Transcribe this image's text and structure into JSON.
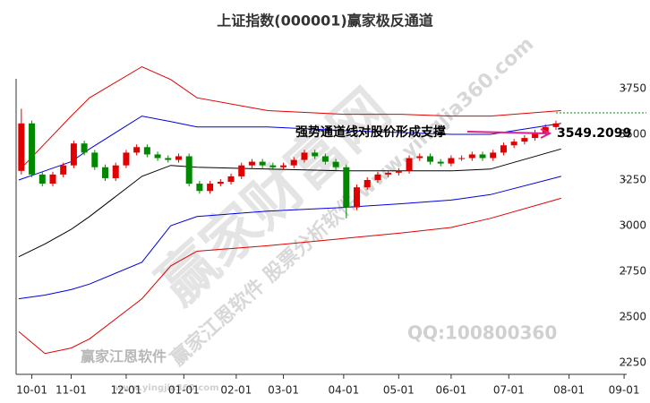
{
  "chart_data": {
    "type": "candlestick",
    "title": "上证指数(000001)赢家极反通道",
    "xlim": [
      -6,
      227
    ],
    "ylim": [
      2186,
      3804
    ],
    "xticks": [
      {
        "value": 0,
        "label": "10-01"
      },
      {
        "value": 15,
        "label": "11-01"
      },
      {
        "value": 36,
        "label": "12-01"
      },
      {
        "value": 58,
        "label": "01-01"
      },
      {
        "value": 78,
        "label": "02-01"
      },
      {
        "value": 96,
        "label": "03-01"
      },
      {
        "value": 119,
        "label": "04-01"
      },
      {
        "value": 140,
        "label": "05-01"
      },
      {
        "value": 160,
        "label": "06-01"
      },
      {
        "value": 182,
        "label": "07-01"
      },
      {
        "value": 205,
        "label": "08-01"
      },
      {
        "value": 226,
        "label": "09-01"
      }
    ],
    "yticks": [
      2250,
      2500,
      2750,
      3000,
      3250,
      3500,
      3750
    ],
    "up_color": "#e00000",
    "down_color": "#008800",
    "x": [
      -4,
      0,
      4,
      8,
      12,
      16,
      20,
      24,
      28,
      32,
      36,
      40,
      44,
      48,
      52,
      56,
      60,
      64,
      68,
      72,
      76,
      80,
      84,
      88,
      92,
      96,
      100,
      104,
      108,
      112,
      116,
      120,
      124,
      128,
      132,
      136,
      140,
      144,
      148,
      152,
      156,
      160,
      164,
      168,
      172,
      176,
      180,
      184,
      188,
      192,
      196,
      200
    ],
    "open": [
      3300,
      3560,
      3280,
      3230,
      3280,
      3330,
      3450,
      3400,
      3320,
      3260,
      3330,
      3400,
      3430,
      3390,
      3370,
      3360,
      3380,
      3230,
      3190,
      3230,
      3240,
      3270,
      3330,
      3350,
      3330,
      3320,
      3330,
      3360,
      3400,
      3380,
      3350,
      3320,
      3100,
      3210,
      3250,
      3280,
      3290,
      3300,
      3370,
      3380,
      3350,
      3340,
      3370,
      3370,
      3390,
      3370,
      3400,
      3440,
      3460,
      3480,
      3510,
      3540
    ],
    "high": [
      3640,
      3575,
      3295,
      3295,
      3345,
      3465,
      3465,
      3415,
      3335,
      3345,
      3415,
      3445,
      3445,
      3405,
      3385,
      3395,
      3395,
      3245,
      3245,
      3255,
      3285,
      3345,
      3365,
      3365,
      3345,
      3345,
      3375,
      3415,
      3415,
      3395,
      3365,
      3335,
      3225,
      3265,
      3295,
      3305,
      3315,
      3385,
      3395,
      3395,
      3365,
      3385,
      3385,
      3405,
      3405,
      3415,
      3455,
      3475,
      3495,
      3525,
      3555,
      3575
    ],
    "low": [
      3280,
      3265,
      3215,
      3215,
      3265,
      3315,
      3385,
      3305,
      3245,
      3245,
      3315,
      3385,
      3375,
      3355,
      3345,
      3345,
      3215,
      3175,
      3175,
      3215,
      3225,
      3255,
      3315,
      3315,
      3305,
      3305,
      3315,
      3345,
      3365,
      3335,
      3305,
      3040,
      3085,
      3195,
      3235,
      3265,
      3275,
      3285,
      3355,
      3335,
      3325,
      3325,
      3355,
      3355,
      3355,
      3355,
      3385,
      3425,
      3445,
      3465,
      3495,
      3525
    ],
    "close": [
      3560,
      3280,
      3230,
      3280,
      3330,
      3450,
      3400,
      3320,
      3260,
      3330,
      3400,
      3430,
      3390,
      3370,
      3360,
      3380,
      3230,
      3190,
      3230,
      3240,
      3270,
      3330,
      3350,
      3330,
      3320,
      3330,
      3360,
      3400,
      3380,
      3350,
      3320,
      3100,
      3210,
      3250,
      3280,
      3290,
      3300,
      3370,
      3380,
      3350,
      3340,
      3370,
      3370,
      3390,
      3370,
      3400,
      3440,
      3460,
      3480,
      3510,
      3540,
      3560
    ],
    "band_x": [
      -5,
      5,
      15,
      22,
      42,
      53,
      63,
      90,
      119,
      141,
      160,
      175,
      202
    ],
    "bands": [
      {
        "color": "#e00000",
        "values": [
          3300,
          3450,
          3600,
          3700,
          3870,
          3800,
          3700,
          3630,
          3610,
          3610,
          3600,
          3600,
          3630
        ]
      },
      {
        "color": "#0000e0",
        "values": [
          3250,
          3300,
          3350,
          3420,
          3600,
          3570,
          3540,
          3540,
          3520,
          3510,
          3500,
          3500,
          3560
        ]
      },
      {
        "color": "#000000",
        "values": [
          2830,
          2900,
          2980,
          3050,
          3270,
          3330,
          3320,
          3310,
          3300,
          3300,
          3300,
          3310,
          3420
        ]
      },
      {
        "color": "#0000e0",
        "values": [
          2600,
          2620,
          2650,
          2680,
          2800,
          3000,
          3050,
          3080,
          3100,
          3120,
          3140,
          3170,
          3270
        ]
      },
      {
        "color": "#e00000",
        "values": [
          2420,
          2300,
          2330,
          2380,
          2600,
          2780,
          2860,
          2890,
          2930,
          2960,
          2990,
          3040,
          3150
        ]
      }
    ],
    "annotation": "强势通道线对股价形成支撑",
    "last_price": 3549.2099,
    "watermarks": [
      "赢家财富网",
      "赢家江恩软件 股票分析软件 www.yingjia360.com",
      "QQ:100800360",
      "赢家江恩软件",
      "www.yingjia360.com"
    ]
  }
}
